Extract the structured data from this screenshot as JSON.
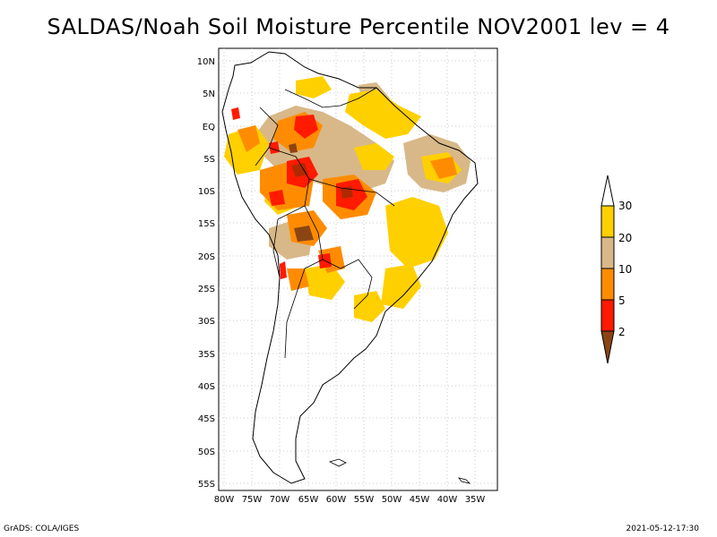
{
  "title": "SALDAS/Noah Soil Moisture Percentile NOV2001 lev = 4",
  "footer": {
    "left": "GrADS: COLA/IGES",
    "right": "2021-05-12-17:30"
  },
  "map": {
    "lat_labels": [
      "10N",
      "5N",
      "EQ",
      "5S",
      "10S",
      "15S",
      "20S",
      "25S",
      "30S",
      "35S",
      "40S",
      "45S",
      "50S",
      "55S"
    ],
    "lon_labels": [
      "80W",
      "75W",
      "70W",
      "65W",
      "60W",
      "55W",
      "50W",
      "45W",
      "40W",
      "35W"
    ],
    "lat_range": [
      10,
      -55
    ],
    "lon_range": [
      -80,
      -35
    ]
  },
  "legend": {
    "labels": [
      "30",
      "20",
      "10",
      "5",
      "2"
    ],
    "colors": {
      "top_arrow": "#ffffff",
      "band_20_30": "#ffd000",
      "band_10_20": "#d8b888",
      "band_5_10": "#ff8c00",
      "band_2_5": "#ff1a00",
      "bottom_arrow": "#8b4513"
    }
  }
}
